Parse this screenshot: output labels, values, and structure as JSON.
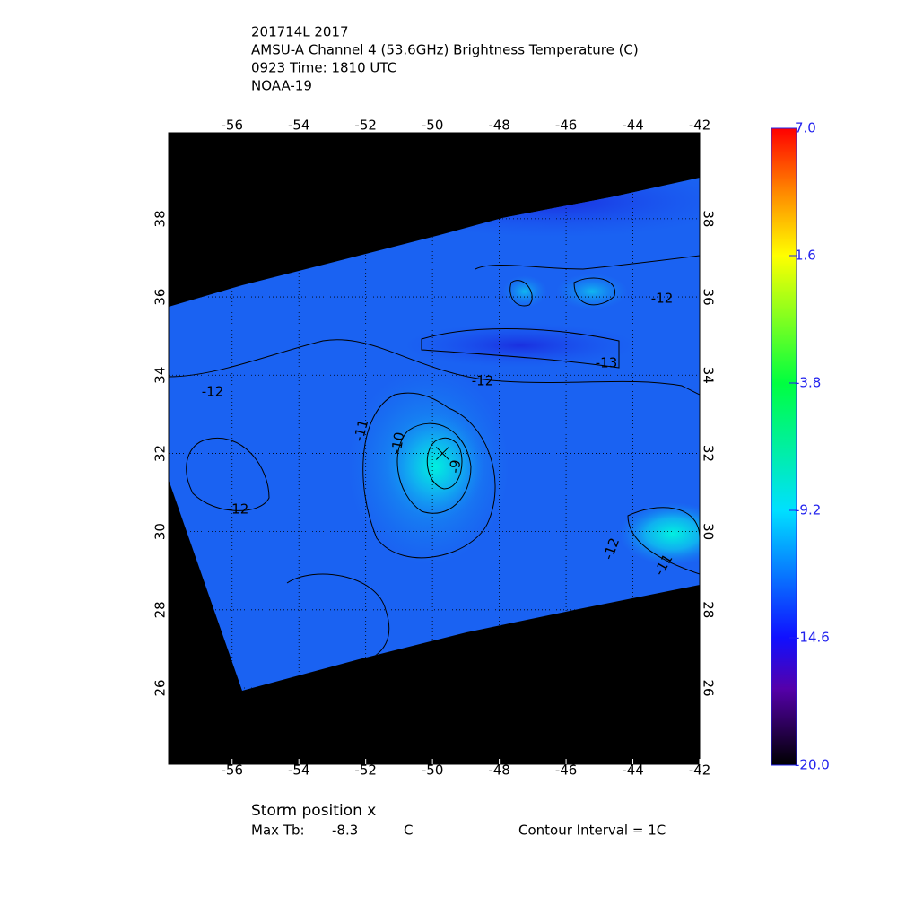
{
  "title_lines": [
    "201714L 2017",
    "AMSU-A Channel 4 (53.6GHz) Brightness Temperature (C)",
    "0923 Time: 1810 UTC",
    "NOAA-19"
  ],
  "map": {
    "xlim": [
      -57.9,
      -42
    ],
    "ylim": [
      24.05,
      40.2
    ],
    "xticks": [
      -56,
      -54,
      -52,
      -50,
      -48,
      -46,
      -44,
      -42
    ],
    "yticks": [
      26,
      28,
      30,
      32,
      34,
      36,
      38
    ],
    "contour_labels": [
      -12,
      -12,
      -13,
      -12,
      -11,
      -10,
      -9,
      -12,
      -12,
      -11
    ],
    "storm_position": {
      "lon": -49.7,
      "lat": 32
    }
  },
  "colorbar": {
    "lim": [
      -20,
      7
    ],
    "ticks": [
      {
        "value": 7,
        "label": "7.0"
      },
      1.6,
      -3.8,
      -9.2,
      -14.6,
      {
        "value": -20,
        "label": "-20.0"
      }
    ]
  },
  "footer": {
    "storm_label": "Storm position x",
    "max_tb_label": "Max Tb:",
    "max_tb": "-8.3",
    "max_tb_unit": "C",
    "contour_interval": "Contour Interval = 1C"
  }
}
